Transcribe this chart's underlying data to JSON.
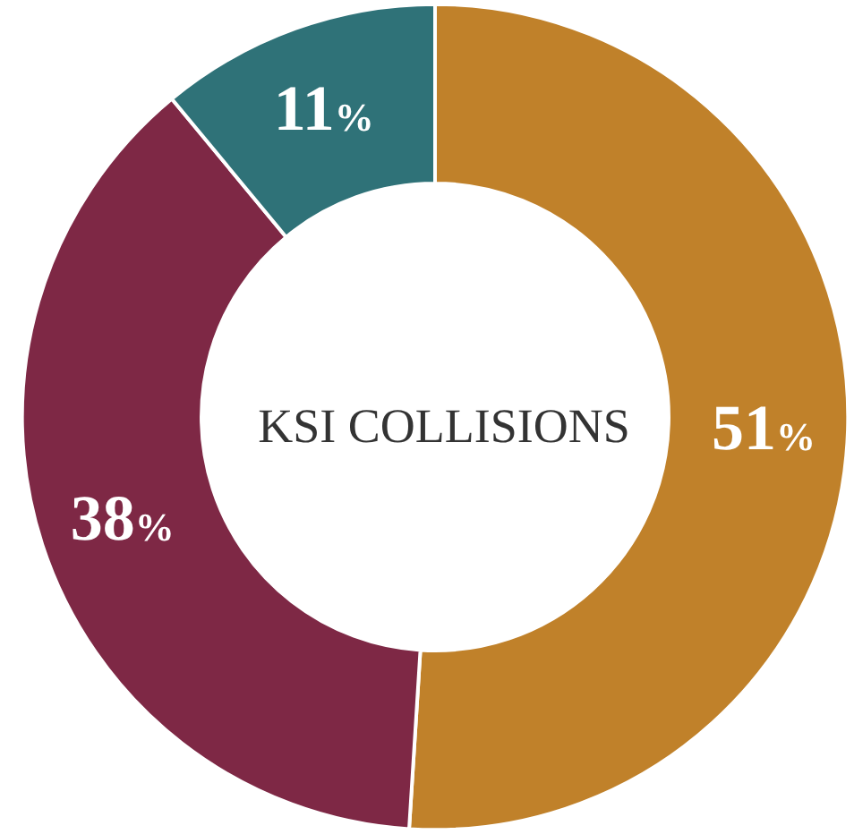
{
  "chart_data": {
    "type": "donut",
    "title": "KSI COLLISIONS",
    "categories": [
      null,
      null,
      null
    ],
    "values": [
      51,
      38,
      11
    ],
    "colors": [
      "#c0812a",
      "#7e2845",
      "#2f7278"
    ],
    "value_labels": [
      "51%",
      "38%",
      "11%"
    ]
  }
}
